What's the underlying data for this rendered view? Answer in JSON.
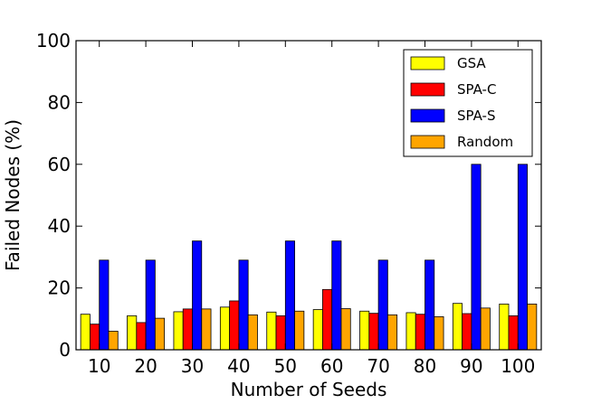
{
  "chart_data": {
    "type": "bar",
    "categories": [
      "10",
      "20",
      "30",
      "40",
      "50",
      "60",
      "70",
      "80",
      "90",
      "100"
    ],
    "series": [
      {
        "name": "GSA",
        "color": "#ffff00",
        "values": [
          11.5,
          11.0,
          12.3,
          13.8,
          12.2,
          13.0,
          12.5,
          12.0,
          15.0,
          14.8
        ]
      },
      {
        "name": "SPA-C",
        "color": "#ff0000",
        "values": [
          8.3,
          8.8,
          13.2,
          15.8,
          11.0,
          19.5,
          11.8,
          11.5,
          11.7,
          11.0
        ]
      },
      {
        "name": "SPA-S",
        "color": "#0000ff",
        "values": [
          29.0,
          29.0,
          35.2,
          29.0,
          35.2,
          35.2,
          29.0,
          29.0,
          60.0,
          60.0
        ]
      },
      {
        "name": "Random",
        "color": "#ffa500",
        "values": [
          6.0,
          10.2,
          13.2,
          11.3,
          12.5,
          13.3,
          11.3,
          10.7,
          13.5,
          14.8
        ]
      }
    ],
    "xlabel": "Number of Seeds",
    "ylabel": "Failed Nodes (%)",
    "ylim": [
      0,
      100
    ],
    "yticks": [
      "0",
      "20",
      "40",
      "60",
      "80",
      "100"
    ],
    "grid": false,
    "legend_position": "top-right"
  }
}
